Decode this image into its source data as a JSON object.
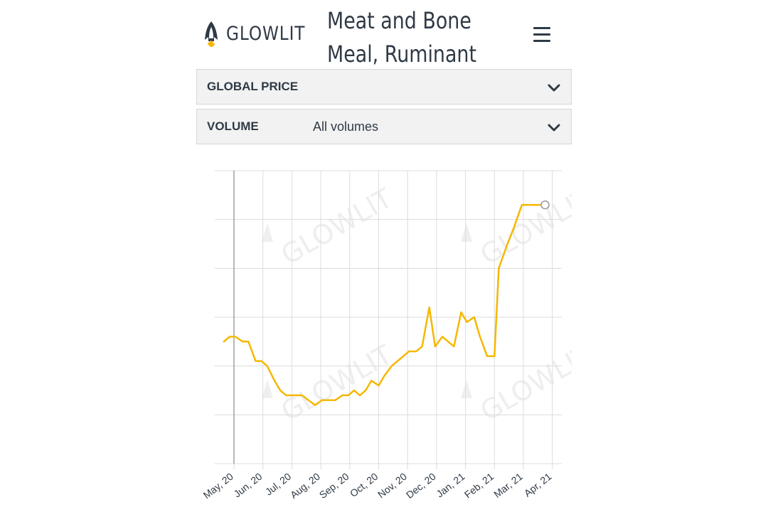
{
  "header": {
    "logo_text": "GLOWLIT",
    "title": "Meat and Bone Meal, Ruminant",
    "menu_icon": "hamburger-menu-icon"
  },
  "filters": {
    "price": {
      "label": "GLOBAL PRICE",
      "value": ""
    },
    "volume": {
      "label": "VOLUME",
      "value": "All volumes"
    }
  },
  "colors": {
    "line": "#f5b700",
    "grid": "#dcdcdc",
    "text": "#2f3a46",
    "panel": "#f2f2f2"
  },
  "watermark": "GLOWLIT",
  "chart_data": {
    "type": "line",
    "title": "",
    "xlabel": "",
    "ylabel": "",
    "tick_labels": [
      "May, 20",
      "Jun, 20",
      "Jul, 20",
      "Aug, 20",
      "Sep, 20",
      "Oct, 20",
      "Nov, 20",
      "Dec, 20",
      "Jan, 21",
      "Feb, 21",
      "Mar, 21",
      "Apr, 21"
    ],
    "ylim": [
      0,
      6
    ],
    "y_ticks": [
      0,
      1,
      2,
      3,
      4,
      5,
      6
    ],
    "y_tick_labels_visible": false,
    "grid": true,
    "series": [
      {
        "name": "",
        "x": [
          -0.35,
          -0.15,
          0.05,
          0.3,
          0.5,
          0.75,
          0.95,
          1.15,
          1.4,
          1.6,
          1.8,
          2.1,
          2.35,
          2.8,
          3.05,
          3.25,
          3.5,
          3.75,
          3.95,
          4.15,
          4.35,
          4.55,
          4.75,
          5.0,
          5.2,
          5.45,
          5.75,
          6.05,
          6.3,
          6.5,
          6.75,
          6.95,
          7.2,
          7.4,
          7.6,
          7.85,
          8.05,
          8.3,
          8.5,
          8.75,
          9.0,
          9.15,
          9.45,
          9.65,
          9.95,
          10.25,
          10.55,
          10.75
        ],
        "y": [
          2.5,
          2.6,
          2.6,
          2.5,
          2.5,
          2.1,
          2.1,
          2.0,
          1.7,
          1.5,
          1.4,
          1.4,
          1.4,
          1.2,
          1.3,
          1.3,
          1.3,
          1.4,
          1.4,
          1.5,
          1.4,
          1.5,
          1.7,
          1.6,
          1.8,
          2.0,
          2.15,
          2.3,
          2.3,
          2.4,
          3.2,
          2.4,
          2.6,
          2.5,
          2.4,
          3.1,
          2.9,
          3.0,
          2.6,
          2.2,
          2.2,
          4.0,
          4.5,
          4.8,
          5.3,
          5.3,
          5.3,
          5.3
        ]
      }
    ],
    "last_point_marker": true
  }
}
